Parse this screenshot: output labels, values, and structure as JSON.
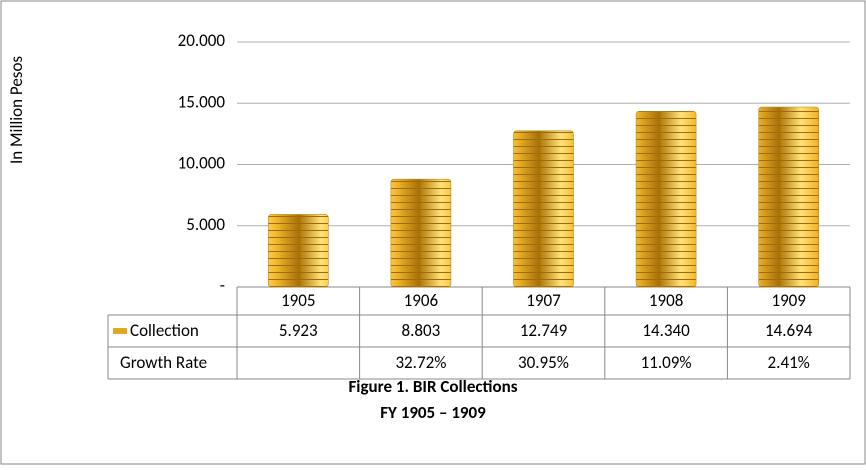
{
  "chart_data": {
    "type": "bar",
    "y_label": "In Million Pesos",
    "categories": [
      "1905",
      "1906",
      "1907",
      "1908",
      "1909"
    ],
    "series": [
      {
        "name": "Collection",
        "color": "#e0a820",
        "values": [
          5.923,
          8.803,
          12.749,
          14.34,
          14.694
        ],
        "value_labels": [
          "5.923",
          "8.803",
          "12.749",
          "14.340",
          "14.694"
        ]
      }
    ],
    "growth_rate": {
      "name": "Growth Rate",
      "values": [
        null,
        32.72,
        30.95,
        11.09,
        2.41
      ],
      "value_labels": [
        null,
        "32.72%",
        "30.95%",
        "11.09%",
        "2.41%"
      ]
    },
    "ylim": [
      0,
      20
    ],
    "yticks": [
      {
        "value": 0,
        "label": "-"
      },
      {
        "value": 5,
        "label": "5.000"
      },
      {
        "value": 10,
        "label": "10.000"
      },
      {
        "value": 15,
        "label": "15.000"
      },
      {
        "value": 20,
        "label": "20.000"
      }
    ],
    "grid": true,
    "caption": [
      "Figure 1. BIR Collections",
      "FY 1905 – 1909"
    ]
  }
}
